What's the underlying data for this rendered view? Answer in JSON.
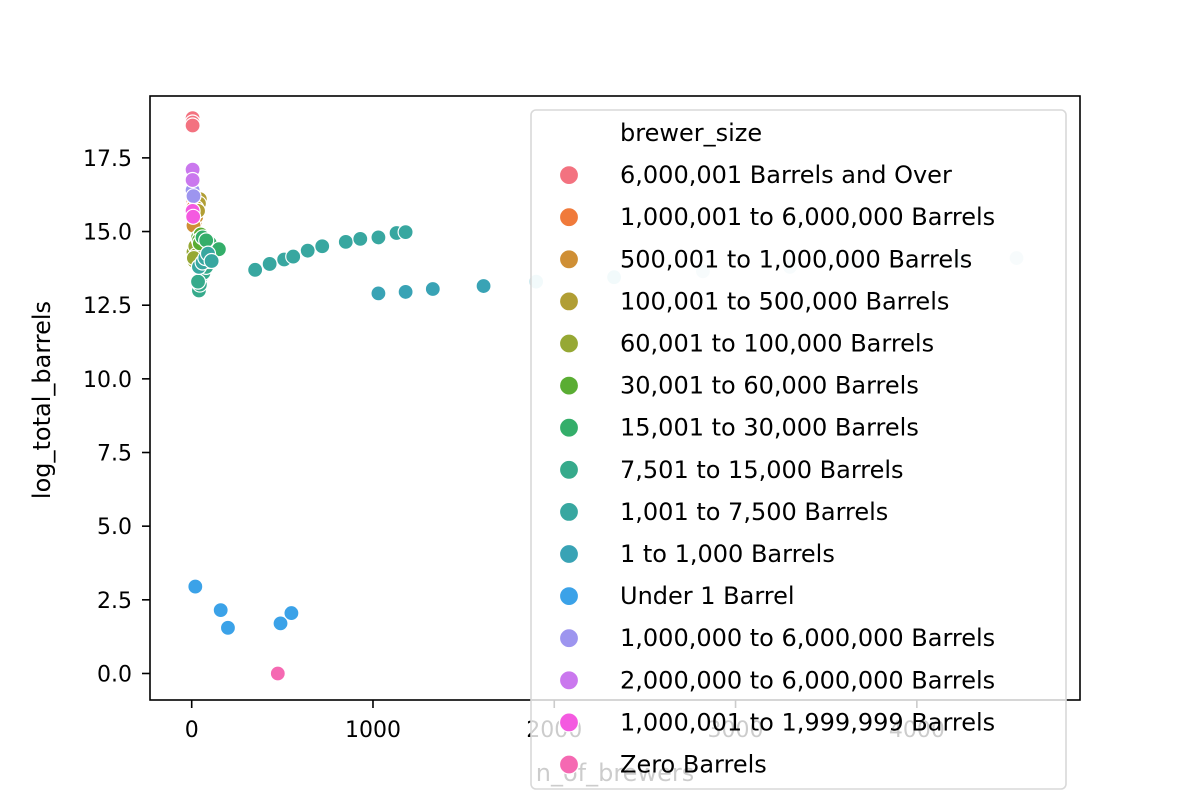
{
  "chart_data": {
    "type": "scatter",
    "title": "",
    "xlabel": "n_of_brewers",
    "ylabel": "log_total_barrels",
    "xlim": [
      -230,
      4900
    ],
    "ylim": [
      -0.9,
      19.6
    ],
    "xticks": [
      0,
      1000,
      2000,
      3000,
      4000
    ],
    "xtick_labels": [
      "0",
      "1000",
      "2000",
      "3000",
      "4000"
    ],
    "yticks": [
      0.0,
      2.5,
      5.0,
      7.5,
      10.0,
      12.5,
      15.0,
      17.5
    ],
    "ytick_labels": [
      "0.0",
      "2.5",
      "5.0",
      "7.5",
      "10.0",
      "12.5",
      "15.0",
      "17.5"
    ],
    "grid": false,
    "legend": {
      "title": "brewer_size",
      "placement": "upper right"
    },
    "series": [
      {
        "name": "6,000,001 Barrels and Over",
        "color": "#f37280",
        "points": [
          [
            5,
            18.85
          ],
          [
            5,
            18.7
          ],
          [
            5,
            18.6
          ]
        ]
      },
      {
        "name": "1,000,001 to 6,000,000 Barrels",
        "color": "#f07a3b",
        "points": [
          [
            10,
            16.0
          ],
          [
            15,
            15.9
          ],
          [
            20,
            16.1
          ],
          [
            8,
            15.8
          ]
        ]
      },
      {
        "name": "500,001 to 1,000,000 Barrels",
        "color": "#cf8f35",
        "points": [
          [
            12,
            15.4
          ],
          [
            18,
            15.3
          ],
          [
            25,
            15.5
          ],
          [
            10,
            15.2
          ]
        ]
      },
      {
        "name": "100,001 to 500,000 Barrels",
        "color": "#b19e34",
        "points": [
          [
            30,
            16.0
          ],
          [
            45,
            16.1
          ],
          [
            40,
            15.95
          ],
          [
            25,
            15.8
          ],
          [
            35,
            15.7
          ]
        ]
      },
      {
        "name": "60,001 to 100,000 Barrels",
        "color": "#96a834",
        "points": [
          [
            10,
            14.3
          ],
          [
            15,
            14.0
          ],
          [
            20,
            14.5
          ],
          [
            25,
            14.2
          ],
          [
            12,
            14.1
          ]
        ]
      },
      {
        "name": "30,001 to 60,000 Barrels",
        "color": "#5aad33",
        "points": [
          [
            35,
            14.8
          ],
          [
            50,
            14.9
          ],
          [
            40,
            14.7
          ],
          [
            45,
            14.6
          ]
        ]
      },
      {
        "name": "15,001 to 30,000 Barrels",
        "color": "#34ae6a",
        "points": [
          [
            60,
            14.8
          ],
          [
            100,
            14.6
          ],
          [
            150,
            14.4
          ],
          [
            80,
            14.7
          ]
        ]
      },
      {
        "name": "7,501 to 15,000 Barrels",
        "color": "#36aa8b",
        "points": [
          [
            40,
            13.0
          ],
          [
            45,
            13.2
          ],
          [
            55,
            13.5
          ],
          [
            65,
            13.6
          ],
          [
            80,
            13.8
          ],
          [
            95,
            14.0
          ],
          [
            35,
            13.3
          ]
        ]
      },
      {
        "name": "1,001 to 7,500 Barrels",
        "color": "#38a7a0",
        "points": [
          [
            350,
            13.7
          ],
          [
            430,
            13.9
          ],
          [
            510,
            14.05
          ],
          [
            560,
            14.15
          ],
          [
            640,
            14.35
          ],
          [
            720,
            14.5
          ],
          [
            850,
            14.65
          ],
          [
            930,
            14.75
          ],
          [
            1030,
            14.8
          ],
          [
            1130,
            14.95
          ],
          [
            1180,
            14.98
          ],
          [
            40,
            13.8
          ],
          [
            60,
            13.95
          ],
          [
            75,
            14.1
          ],
          [
            90,
            14.25
          ],
          [
            110,
            14.0
          ]
        ]
      },
      {
        "name": "1 to 1,000 Barrels",
        "color": "#39a3b5",
        "points": [
          [
            1030,
            12.9
          ],
          [
            1180,
            12.95
          ],
          [
            1330,
            13.05
          ],
          [
            1610,
            13.15
          ],
          [
            1900,
            13.3
          ],
          [
            2330,
            13.45
          ],
          [
            2820,
            13.65
          ],
          [
            3300,
            13.8
          ],
          [
            3650,
            13.95
          ],
          [
            4240,
            14.05
          ],
          [
            4550,
            14.1
          ]
        ]
      },
      {
        "name": "Under 1 Barrel",
        "color": "#3ba2e8",
        "points": [
          [
            20,
            2.95
          ],
          [
            160,
            2.15
          ],
          [
            200,
            1.55
          ],
          [
            490,
            1.7
          ],
          [
            550,
            2.05
          ]
        ]
      },
      {
        "name": "1,000,000 to 6,000,000 Barrels",
        "color": "#9d95ef",
        "points": [
          [
            5,
            16.4
          ],
          [
            10,
            16.2
          ]
        ]
      },
      {
        "name": "2,000,000 to 6,000,000 Barrels",
        "color": "#ca78ee",
        "points": [
          [
            5,
            17.1
          ],
          [
            5,
            16.75
          ]
        ]
      },
      {
        "name": "1,000,001 to 1,999,999 Barrels",
        "color": "#f45ae0",
        "points": [
          [
            5,
            15.7
          ],
          [
            8,
            15.5
          ]
        ]
      },
      {
        "name": "Zero Barrels",
        "color": "#f569b2",
        "points": [
          [
            475,
            0.0
          ]
        ]
      }
    ],
    "late_point_colors": {
      "1 to 1,000 Barrels": [
        "#39a3b5",
        "#39a3b5",
        "#39a3b5",
        "#39a3b5",
        "#bfe3ea",
        "#bfe3ea",
        "#d4ebef",
        "#d4ebef",
        "#d4ebef",
        "#d4ebef",
        "#d4ebef"
      ]
    }
  }
}
